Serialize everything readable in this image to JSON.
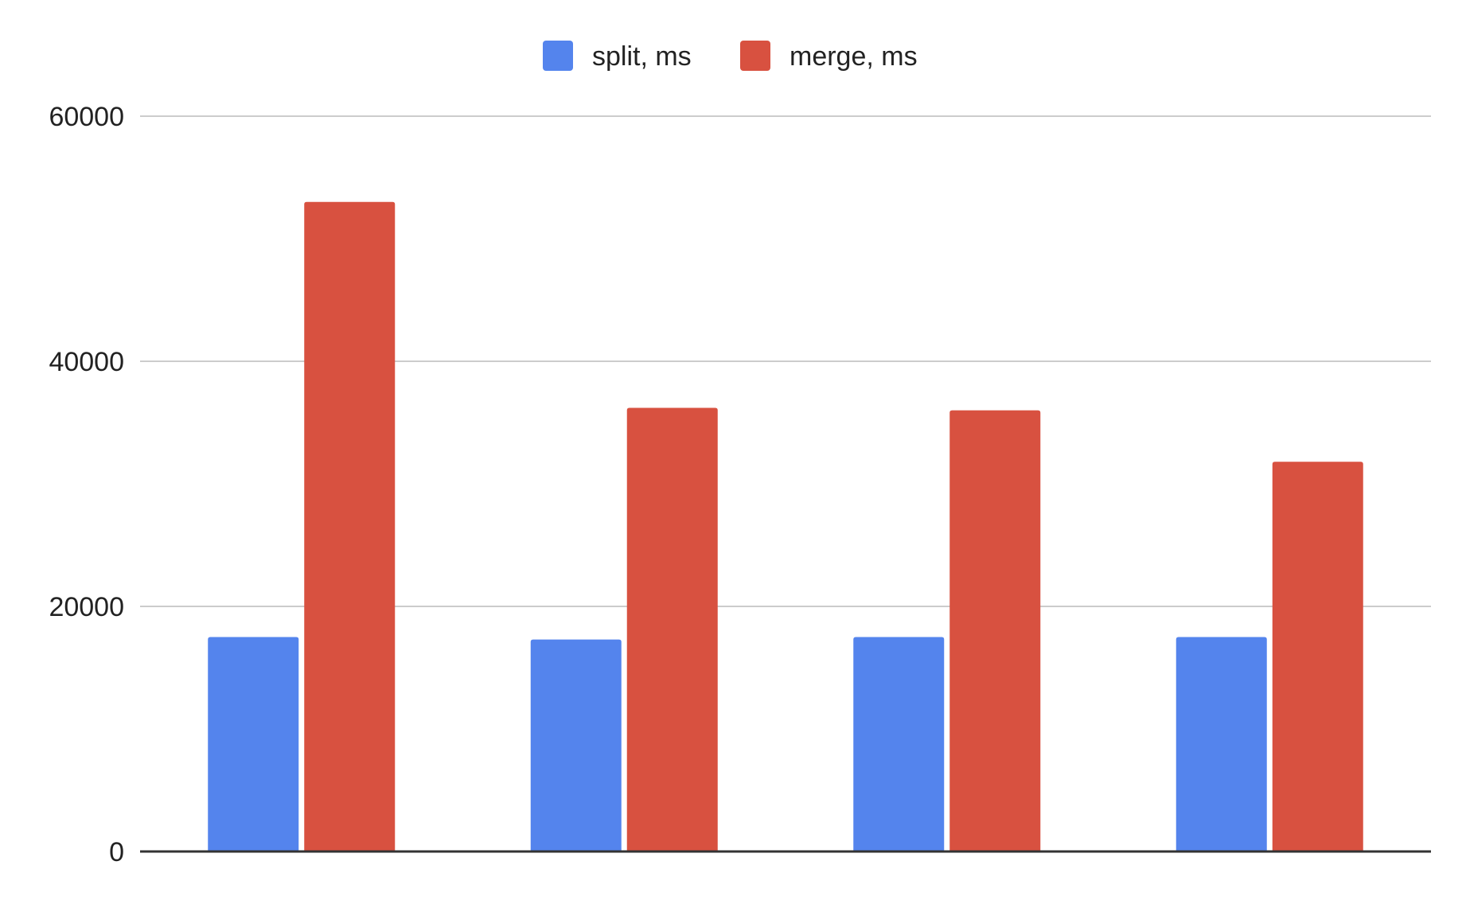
{
  "chart_data": {
    "type": "bar",
    "categories": [
      "",
      "",
      "",
      ""
    ],
    "series": [
      {
        "name": "split, ms",
        "color": "#5484ED",
        "values": [
          17500,
          17300,
          17500,
          17500
        ]
      },
      {
        "name": "merge, ms",
        "color": "#D85140",
        "values": [
          53000,
          36200,
          36000,
          31800
        ]
      }
    ],
    "yticks": [
      0,
      20000,
      40000,
      60000
    ],
    "ylim": [
      0,
      60000
    ],
    "grid": true,
    "legend_position": "top-center",
    "title": "",
    "xlabel": "",
    "ylabel": ""
  }
}
